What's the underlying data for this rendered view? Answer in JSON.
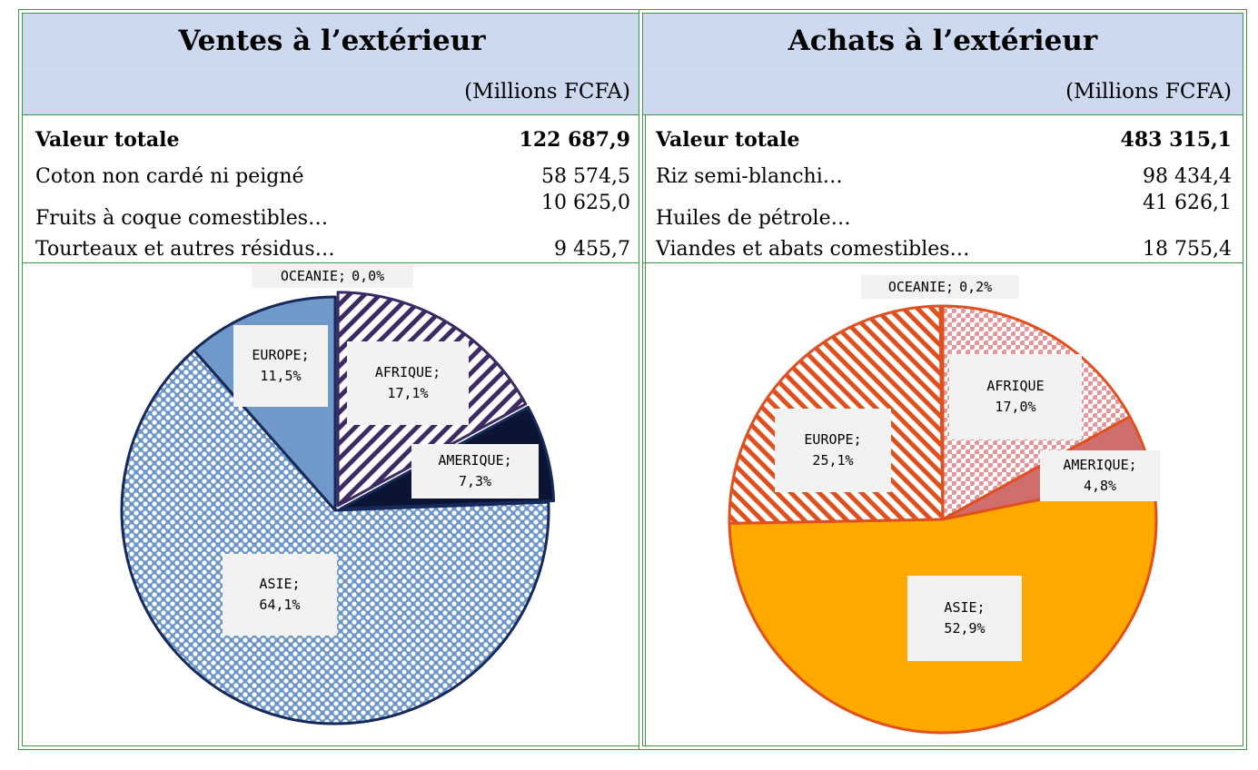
{
  "left": {
    "title": "Ventes à l’extérieur",
    "unit": "(Millions FCFA)",
    "total_label": "Valeur totale",
    "total_value": "122 687,9",
    "rows": [
      {
        "label": "Coton non cardé ni peigné",
        "value": "58 574,5"
      },
      {
        "label": "Fruits à coque comestibles…",
        "value": "10 625,0"
      },
      {
        "label": "Tourteaux et autres résidus…",
        "value": "9 455,7"
      }
    ]
  },
  "right": {
    "title": "Achats à l’extérieur",
    "unit": "(Millions FCFA)",
    "total_label": "Valeur totale",
    "total_value": "483 315,1",
    "rows": [
      {
        "label": "Riz semi-blanchi…",
        "value": "98 434,4"
      },
      {
        "label": "Huiles de pétrole…",
        "value": "41 626,1"
      },
      {
        "label": "Viandes et abats comestibles…",
        "value": "18 755,4"
      }
    ]
  },
  "chart_data": [
    {
      "type": "pie",
      "categories": [
        "AFRIQUE",
        "AMERIQUE",
        "ASIE",
        "EUROPE",
        "OCEANIE"
      ],
      "values": [
        17.1,
        7.3,
        64.1,
        11.5,
        0.0
      ],
      "labels": [
        {
          "name": "AFRIQUE;",
          "pct": "17,1%"
        },
        {
          "name": "AMERIQUE;",
          "pct": "7,3%"
        },
        {
          "name": "ASIE;",
          "pct": "64,1%"
        },
        {
          "name": "EUROPE;",
          "pct": "11,5%"
        },
        {
          "name": "OCEANIE;",
          "pct": "0,0%"
        }
      ],
      "colors": [
        "#3b2a63",
        "#0b1433",
        "#6d96c8",
        "#6f99c9",
        "#ffffff"
      ]
    },
    {
      "type": "pie",
      "categories": [
        "AFRIQUE",
        "AMERIQUE",
        "ASIE",
        "EUROPE",
        "OCEANIE"
      ],
      "values": [
        17.0,
        4.8,
        52.9,
        25.1,
        0.2
      ],
      "labels": [
        {
          "name": "AFRIQUE",
          "pct": "17,0%"
        },
        {
          "name": "AMERIQUE;",
          "pct": "4,8%"
        },
        {
          "name": "ASIE;",
          "pct": "52,9%"
        },
        {
          "name": "EUROPE;",
          "pct": "25,1%"
        },
        {
          "name": "OCEANIE;",
          "pct": "0,2%"
        }
      ],
      "colors": [
        "#d9868a",
        "#d06d6d",
        "#ffa800",
        "#e0501f",
        "#ffffff"
      ]
    }
  ]
}
